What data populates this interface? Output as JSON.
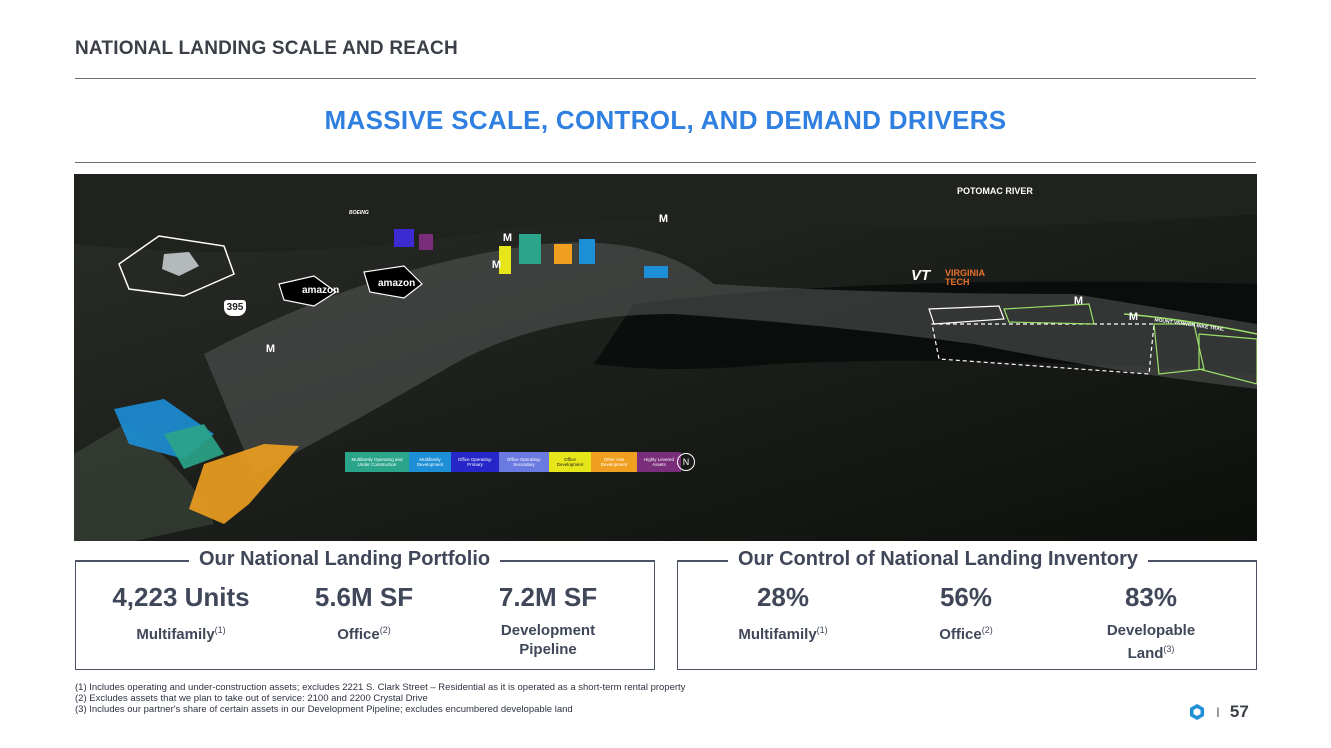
{
  "header": {
    "section_title": "NATIONAL LANDING SCALE AND REACH"
  },
  "main_title": "MASSIVE SCALE, CONTROL, AND DEMAND DRIVERS",
  "map": {
    "river_label": "POTOMAC RIVER",
    "trail_label": "MOUNT VERNON BIKE TRAIL",
    "vt_mark": "VT",
    "vt_line1": "VIRGINIA",
    "vt_line2": "TECH",
    "amazon1": "amazon",
    "amazon2": "amazon",
    "highway": "395",
    "boeing": "BOEING",
    "metro_symbol": "M",
    "north": "N",
    "legend": [
      {
        "label": "Multifamily Operating and Under Construction",
        "color": "#2aa58a"
      },
      {
        "label": "Multifamily Development",
        "color": "#1c8fd6"
      },
      {
        "label": "Office Operating- Primary",
        "color": "#2626c9"
      },
      {
        "label": "Office Operating- Secondary",
        "color": "#6a7ae0"
      },
      {
        "label": "Office Development",
        "color": "#e6e61a"
      },
      {
        "label": "Other Use Development",
        "color": "#f0a020"
      },
      {
        "label": "Highly Levered Assets",
        "color": "#7a2d7a"
      }
    ]
  },
  "portfolio": {
    "title": "Our National Landing Portfolio",
    "stats": [
      {
        "value": "4,223 Units",
        "label": "Multifamily",
        "note": "(1)"
      },
      {
        "value": "5.6M SF",
        "label": "Office",
        "note": "(2)"
      },
      {
        "value": "7.2M SF",
        "label": "Development Pipeline",
        "note": ""
      }
    ]
  },
  "control": {
    "title": "Our Control of National Landing Inventory",
    "stats": [
      {
        "value": "28%",
        "label": "Multifamily",
        "note": "(1)"
      },
      {
        "value": "56%",
        "label": "Office",
        "note": "(2)"
      },
      {
        "value": "83%",
        "label": "Developable Land",
        "note": "(3)"
      }
    ]
  },
  "footnotes": [
    "(1) Includes operating and under-construction assets; excludes 2221 S. Clark Street – Residential as it is operated as a short-term rental property",
    "(2) Excludes assets that we plan to take out of service: 2100 and 2200 Crystal Drive",
    "(3) Includes our partner's share of certain assets in our Development Pipeline; excludes encumbered developable land"
  ],
  "page": {
    "separator": "I",
    "number": "57",
    "logo_color": "#1c8fd6"
  }
}
